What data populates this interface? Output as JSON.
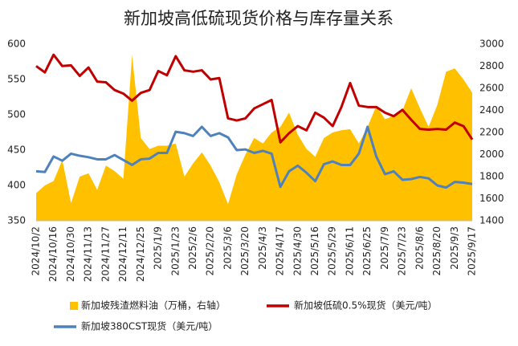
{
  "chart_data": {
    "type": "combo",
    "title": "新加坡高低硫现货价格与库存量关系",
    "categories": [
      "2024/10/2",
      null,
      "2024/10/16",
      null,
      "2024/10/30",
      null,
      "2024/11/13",
      null,
      "2024/11/27",
      null,
      "2024/12/11",
      null,
      "2024/12/25",
      null,
      "2025/1/9",
      null,
      "2025/1/23",
      null,
      "2025/2/6",
      null,
      "2025/2/20",
      null,
      "2025/3/6",
      null,
      "2025/3/20",
      null,
      "2025/4/3",
      null,
      "2025/4/17",
      null,
      "2025/4/30",
      null,
      "2025/5/16",
      null,
      "2025/5/29",
      null,
      "2025/6/11",
      null,
      "2025/6/25",
      null,
      "2025/7/9",
      null,
      "2025/7/23",
      null,
      "2025/8/6",
      null,
      "2025/8/20",
      null,
      "2025/9/3",
      null,
      "2025/9/17"
    ],
    "ylim": [
      350,
      600
    ],
    "yticks": [
      350,
      400,
      450,
      500,
      550,
      600
    ],
    "y2lim": [
      1400,
      3000
    ],
    "y2ticks": [
      1400,
      1600,
      1800,
      2000,
      2200,
      2400,
      2600,
      2800,
      3000
    ],
    "series": [
      {
        "name": "新加坡残渣燃料油（万桶，右轴）",
        "kind": "area",
        "axis": "y2",
        "color": "#FFC000",
        "values": [
          1650,
          1720,
          1760,
          1950,
          1560,
          1800,
          1830,
          1680,
          1900,
          1850,
          1780,
          2900,
          2150,
          2050,
          2080,
          2080,
          2100,
          1800,
          1920,
          2020,
          1900,
          1750,
          1550,
          1820,
          2000,
          2150,
          2100,
          2200,
          2250,
          2380,
          2180,
          2050,
          1980,
          2150,
          2200,
          2220,
          2230,
          2100,
          2250,
          2440,
          2320,
          2350,
          2400,
          2600,
          2420,
          2250,
          2450,
          2750,
          2780,
          2680,
          2560
        ]
      },
      {
        "name": "新加坡低硫0.5%现货（美元/吨）",
        "kind": "line",
        "color": "#C00000",
        "values": [
          569,
          560,
          585,
          569,
          570,
          555,
          567,
          547,
          546,
          535,
          530,
          520,
          531,
          535,
          562,
          556,
          583,
          563,
          561,
          563,
          550,
          552,
          495,
          492,
          495,
          509,
          515,
          521,
          461,
          474,
          484,
          478,
          503,
          496,
          484,
          511,
          545,
          513,
          511,
          511,
          503,
          498,
          507,
          493,
          480,
          479,
          480,
          479,
          489,
          484,
          465
        ]
      },
      {
        "name": "新加坡380CST现货（美元/吨）",
        "kind": "line",
        "color": "#4F81BD",
        "values": [
          420,
          419,
          441,
          435,
          445,
          442,
          440,
          437,
          437,
          443,
          436,
          429,
          437,
          438,
          446,
          446,
          476,
          474,
          470,
          483,
          470,
          474,
          468,
          450,
          451,
          446,
          449,
          445,
          398,
          420,
          428,
          418,
          406,
          430,
          434,
          429,
          429,
          445,
          483,
          441,
          416,
          420,
          408,
          409,
          412,
          410,
          400,
          397,
          405,
          404,
          402
        ]
      }
    ]
  }
}
